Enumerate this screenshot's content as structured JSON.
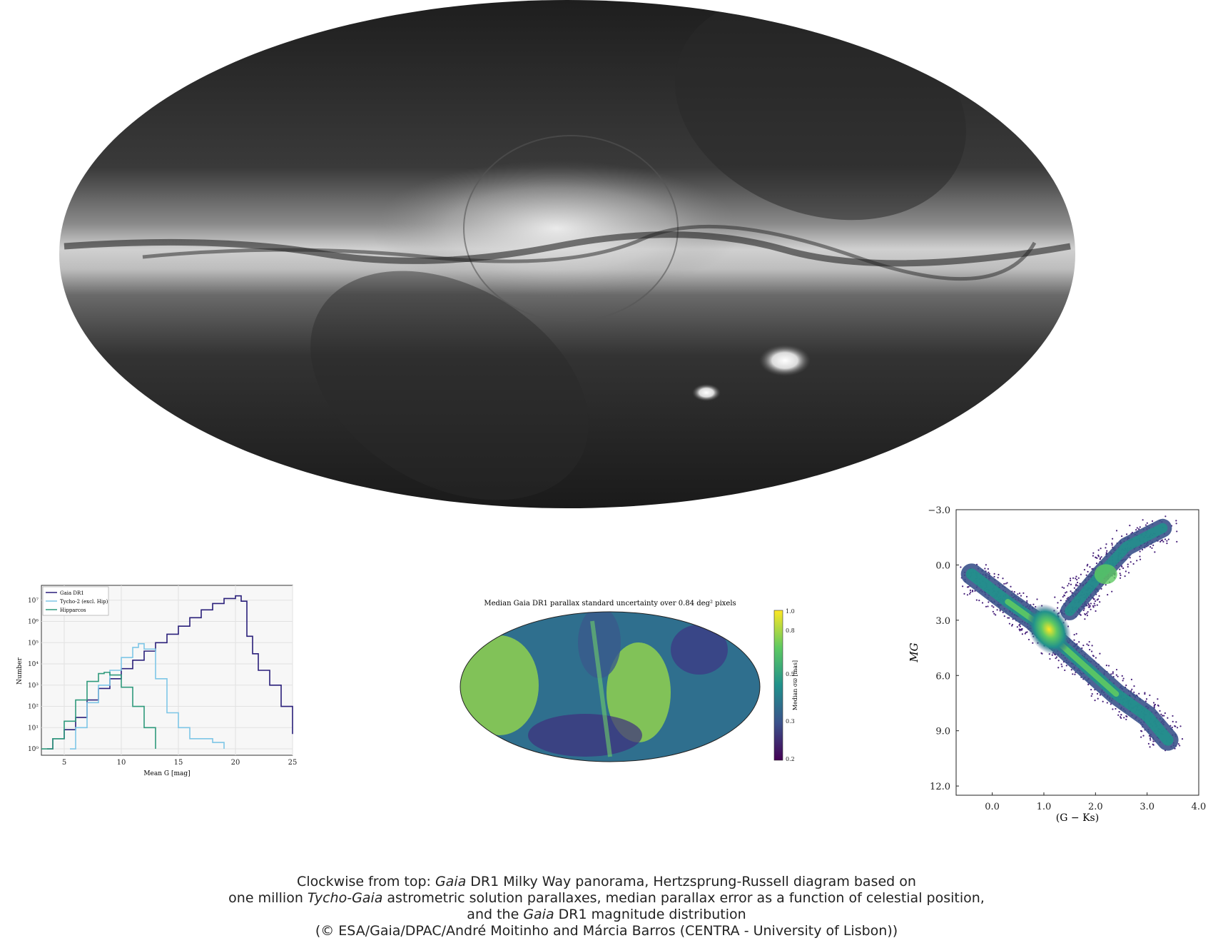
{
  "panorama": {
    "description_hidden": ""
  },
  "histogram": {
    "legend": [
      {
        "label": "Gaia DR1",
        "color": "#2a1f7a"
      },
      {
        "label": "Tycho-2 (excl. Hip)",
        "color": "#7ec6e6"
      },
      {
        "label": "Hipparcos",
        "color": "#2f9a7c"
      }
    ],
    "ylabel": "Number",
    "xlabel": "Mean G [mag]",
    "xticks": [
      "5",
      "10",
      "15",
      "20",
      "25"
    ],
    "yticks": [
      "10⁰",
      "10¹",
      "10²",
      "10³",
      "10⁴",
      "10⁵",
      "10⁶",
      "10⁷"
    ]
  },
  "skymap": {
    "title": "Median Gaia DR1 parallax standard uncertainty over 0.84 deg² pixels",
    "colorbar_label": "Median σϖ [mas]",
    "colorbar_ticks": [
      "1.0",
      "0.8",
      "0.5",
      "0.3",
      "0.2"
    ]
  },
  "hrd": {
    "ylabel": "MG",
    "xlabel": "(G − Ks)",
    "yticks": [
      "−3.0",
      "0.0",
      "3.0",
      "6.0",
      "9.0",
      "12.0"
    ],
    "xticks": [
      "0.0",
      "1.0",
      "2.0",
      "3.0",
      "4.0"
    ]
  },
  "caption": {
    "line1_a": "Clockwise from top: ",
    "line1_b": "Gaia",
    "line1_c": " DR1 Milky Way panorama, Hertzsprung-Russell diagram based on",
    "line2_a": "one million ",
    "line2_b": "Tycho-Gaia",
    "line2_c": " astrometric solution parallaxes, median parallax error as a function of celestial position,",
    "line3_a": "and the ",
    "line3_b": "Gaia",
    "line3_c": " DR1 magnitude distribution",
    "line4": "(© ESA/Gaia/DPAC/André Moitinho and Márcia Barros (CENTRA - University of Lisbon))"
  },
  "chart_data": [
    {
      "type": "line",
      "title": "",
      "xlabel": "Mean G [mag]",
      "ylabel": "Number",
      "xlim": [
        3,
        25
      ],
      "ylim": [
        0.5,
        50000000
      ],
      "yscale": "log",
      "grid": true,
      "legend": "top-left",
      "series": [
        {
          "name": "Gaia DR1",
          "color": "#2a1f7a",
          "x": [
            3.5,
            4,
            5,
            6,
            7,
            8,
            9,
            10,
            11,
            12,
            13,
            14,
            15,
            16,
            17,
            18,
            19,
            20,
            20.5,
            21,
            21.5,
            22,
            23,
            24,
            25
          ],
          "y": [
            1,
            3,
            8,
            30,
            200,
            700,
            2000,
            6000,
            15000,
            40000,
            100000,
            250000,
            600000,
            1500000,
            3500000,
            7000000,
            12000000,
            16000000,
            9000000,
            200000,
            30000,
            5000,
            1000,
            100,
            5
          ]
        },
        {
          "name": "Tycho-2 (excl. Hip)",
          "color": "#7ec6e6",
          "x": [
            5.5,
            6,
            7,
            8,
            9,
            10,
            11,
            11.5,
            12,
            13,
            14,
            15,
            16,
            18,
            19
          ],
          "y": [
            1,
            10,
            150,
            1000,
            5000,
            20000,
            60000,
            90000,
            50000,
            2000,
            50,
            10,
            3,
            2,
            1
          ]
        },
        {
          "name": "Hipparcos",
          "color": "#2f9a7c",
          "x": [
            3,
            4,
            5,
            6,
            7,
            8,
            8.5,
            9,
            10,
            11,
            12,
            13
          ],
          "y": [
            1,
            3,
            20,
            200,
            1500,
            3500,
            4000,
            3000,
            800,
            100,
            10,
            1
          ]
        }
      ]
    },
    {
      "type": "heatmap",
      "title": "Median Gaia DR1 parallax standard uncertainty over 0.84 deg² pixels",
      "colorbar": {
        "label": "Median σϖ [mas]",
        "range": [
          0.2,
          1.0
        ],
        "cmap": "viridis"
      }
    },
    {
      "type": "scatter",
      "xlabel": "(G − Ks)",
      "ylabel": "MG",
      "xlim": [
        -0.7,
        4.0
      ],
      "ylim": [
        12.5,
        -3.0
      ],
      "density_peak": [
        1.1,
        3.5
      ],
      "secondary_clump": [
        2.2,
        0.5
      ],
      "main_sequence": [
        [
          -0.4,
          0.5
        ],
        [
          0.3,
          2.0
        ],
        [
          0.8,
          3.0
        ],
        [
          1.2,
          4.0
        ],
        [
          1.8,
          5.5
        ],
        [
          2.4,
          7.0
        ],
        [
          3.0,
          8.2
        ],
        [
          3.4,
          9.5
        ]
      ],
      "giant_branch": [
        [
          1.5,
          2.5
        ],
        [
          1.8,
          1.5
        ],
        [
          2.1,
          0.5
        ],
        [
          2.6,
          -1.0
        ],
        [
          3.3,
          -2.0
        ]
      ]
    }
  ]
}
